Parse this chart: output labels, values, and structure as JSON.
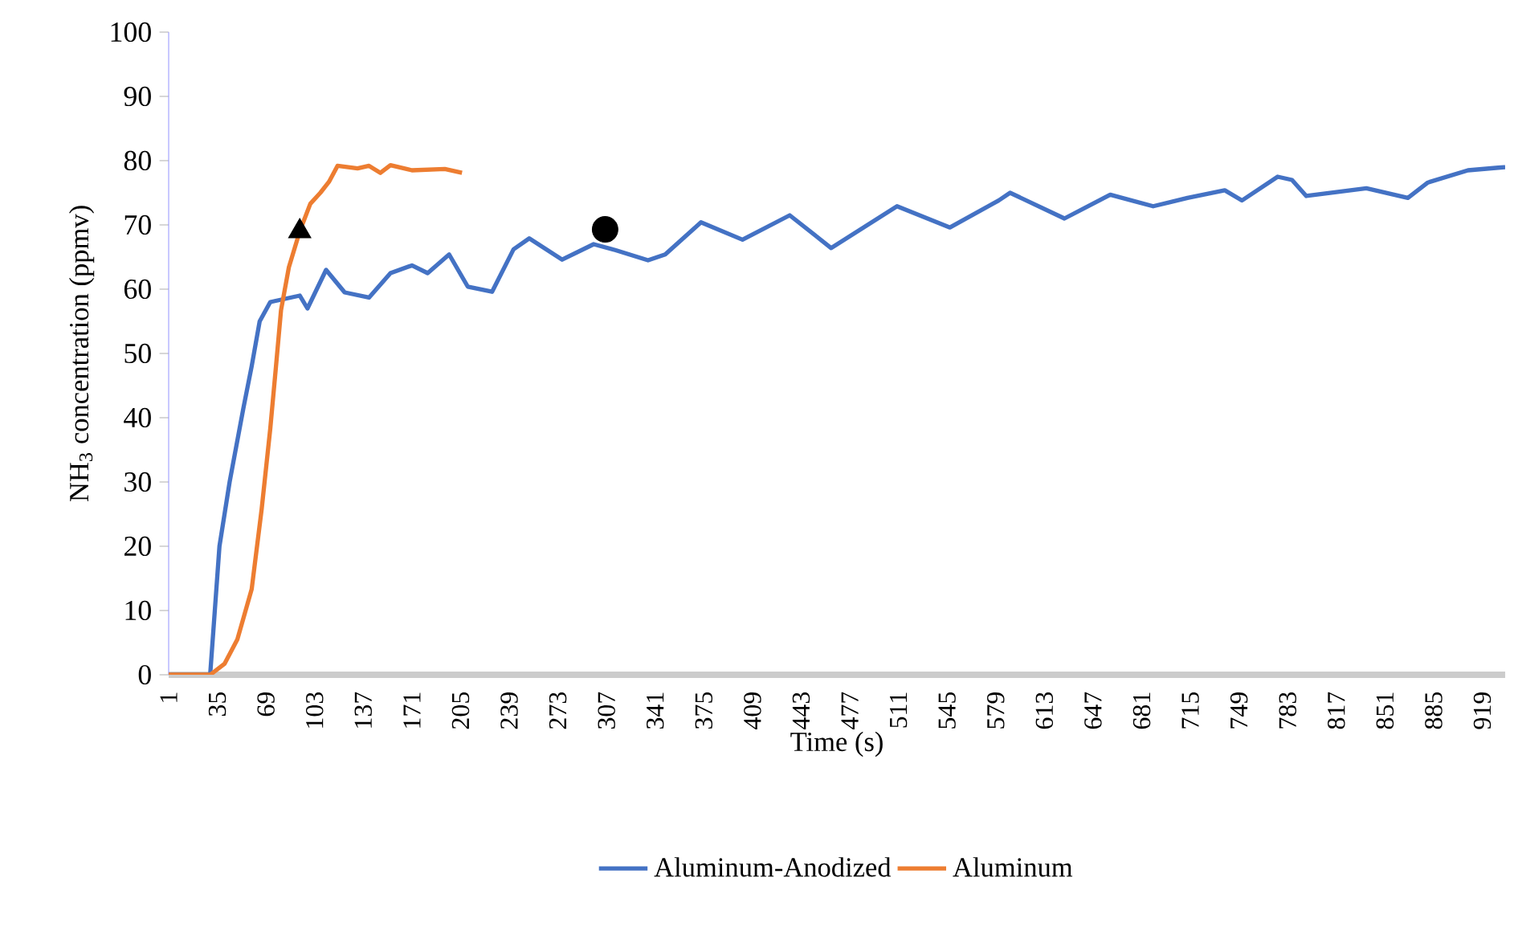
{
  "chart_data": {
    "type": "line",
    "xlabel": "Time (s)",
    "ylabel": "NH$_{3}$ concentration (ppmv)",
    "xlim": [
      1,
      935
    ],
    "ylim": [
      0,
      100
    ],
    "xticks": [
      1,
      35,
      69,
      103,
      137,
      171,
      205,
      239,
      273,
      307,
      341,
      375,
      409,
      443,
      477,
      511,
      545,
      579,
      613,
      647,
      681,
      715,
      749,
      783,
      817,
      851,
      885,
      919
    ],
    "yticks": [
      0,
      10,
      20,
      30,
      40,
      50,
      60,
      70,
      80,
      90,
      100
    ],
    "grid": false,
    "legend": "bottom",
    "marker": "none",
    "line_style": "solid",
    "series": [
      {
        "name": "Aluminum-Anodized",
        "color": "#4472c4",
        "x": [
          1,
          30,
          36.5,
          43.6,
          53.4,
          59,
          64.6,
          72,
          92.6,
          98,
          111,
          124,
          141,
          156,
          171,
          182,
          197,
          210,
          227,
          242,
          253,
          276,
          298,
          313,
          336,
          348,
          373,
          402,
          435,
          464,
          510,
          547,
          581,
          589,
          627,
          659,
          689,
          713,
          739,
          751,
          776,
          786,
          796,
          838,
          867,
          881,
          909,
          935
        ],
        "values": [
          0,
          0,
          20,
          30,
          41.7,
          48,
          55,
          58,
          59,
          57,
          63,
          59.5,
          58.7,
          62.5,
          63.7,
          62.5,
          65.4,
          60.4,
          59.6,
          66.2,
          67.9,
          64.6,
          67,
          66.1,
          64.5,
          65.4,
          70.4,
          67.7,
          71.5,
          66.4,
          72.9,
          69.6,
          73.8,
          75,
          71,
          74.7,
          72.9,
          74.2,
          75.4,
          73.8,
          77.5,
          77,
          74.5,
          75.7,
          74.2,
          76.6,
          78.5,
          79
        ]
      },
      {
        "name": "Aluminum",
        "color": "#ed7d31",
        "x": [
          1,
          30,
          40,
          49,
          59,
          66,
          72,
          76,
          79.5,
          85,
          92.6,
          100,
          107,
          113,
          119,
          133,
          141,
          149,
          156,
          171,
          194,
          206
        ],
        "values": [
          0,
          0,
          1.7,
          5.5,
          13.3,
          25.8,
          38.3,
          48,
          56.7,
          63.4,
          69,
          73.3,
          75,
          76.7,
          79.2,
          78.8,
          79.2,
          78.1,
          79.3,
          78.5,
          78.7,
          78.1
        ]
      },
      {
        "type": "scatter",
        "marker": "triangle",
        "color": "#000000",
        "x": [
          92.6
        ],
        "values": [
          69
        ]
      },
      {
        "type": "scatter",
        "marker": "circle",
        "color": "#000000",
        "x": [
          306
        ],
        "values": [
          69.3
        ]
      }
    ]
  }
}
